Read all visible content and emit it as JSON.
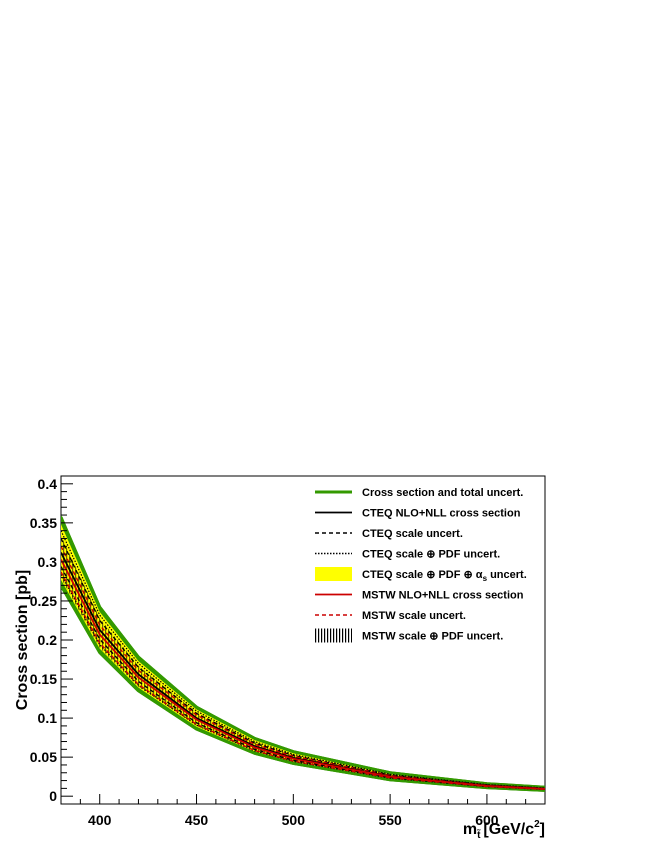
{
  "chart_data": {
    "type": "line",
    "ylabel": "Cross section [pb]",
    "xlabel": {
      "main": "m",
      "sub": "t̃",
      "unit_pre": "[GeV/c",
      "unit_sup": "2",
      "unit_post": "]"
    },
    "xlim": [
      380,
      630
    ],
    "ylim": [
      -0.01,
      0.41
    ],
    "x_ticks": [
      400,
      450,
      500,
      550,
      600
    ],
    "y_ticks": [
      0,
      0.05,
      0.1,
      0.15,
      0.2,
      0.25,
      0.3,
      0.35,
      0.4
    ],
    "y_tick_labels": [
      "0",
      "0.05",
      "0.1",
      "0.15",
      "0.2",
      "0.25",
      "0.3",
      "0.35",
      "0.4"
    ],
    "x": [
      380,
      400,
      420,
      450,
      480,
      500,
      550,
      600,
      630
    ],
    "series": [
      {
        "name": "Cross section and total uncert.",
        "role": "total_band",
        "color": "#339900",
        "upper": [
          0.357,
          0.242,
          0.178,
          0.114,
          0.074,
          0.057,
          0.03,
          0.016,
          0.0115
        ],
        "lower": [
          0.27,
          0.184,
          0.135,
          0.086,
          0.055,
          0.042,
          0.021,
          0.011,
          0.0075
        ]
      },
      {
        "name": "CTEQ NLO+NLL cross section",
        "role": "central",
        "color": "#000000",
        "values": [
          0.312,
          0.213,
          0.156,
          0.1,
          0.064,
          0.049,
          0.0255,
          0.0135,
          0.0095
        ]
      },
      {
        "name": "CTEQ scale uncert.",
        "role": "scale",
        "color": "#000000",
        "upper": [
          0.33,
          0.225,
          0.165,
          0.106,
          0.068,
          0.052,
          0.027,
          0.0143,
          0.0101
        ],
        "lower": [
          0.294,
          0.201,
          0.147,
          0.094,
          0.06,
          0.046,
          0.024,
          0.0127,
          0.0089
        ]
      },
      {
        "name": "CTEQ scale ⊕ PDF uncert.",
        "role": "scale_pdf",
        "color": "#000000",
        "upper": [
          0.34,
          0.232,
          0.17,
          0.109,
          0.07,
          0.0535,
          0.028,
          0.0148,
          0.0105
        ],
        "lower": [
          0.284,
          0.194,
          0.142,
          0.091,
          0.058,
          0.0445,
          0.023,
          0.0122,
          0.0085
        ]
      },
      {
        "name": "CTEQ scale ⊕ PDF ⊕ αs uncert.",
        "role": "scale_pdf_as_band",
        "color": "#ffff00",
        "upper": [
          0.348,
          0.236,
          0.173,
          0.111,
          0.072,
          0.055,
          0.0288,
          0.0152,
          0.0109
        ],
        "lower": [
          0.277,
          0.189,
          0.139,
          0.089,
          0.057,
          0.0435,
          0.0222,
          0.0118,
          0.0081
        ]
      },
      {
        "name": "MSTW NLO+NLL cross section",
        "role": "central",
        "color": "#cc0000",
        "values": [
          0.303,
          0.207,
          0.152,
          0.098,
          0.0625,
          0.048,
          0.025,
          0.0132,
          0.0093
        ]
      },
      {
        "name": "MSTW scale uncert.",
        "role": "scale",
        "color": "#cc0000",
        "upper": [
          0.32,
          0.219,
          0.161,
          0.104,
          0.0665,
          0.051,
          0.0265,
          0.014,
          0.0099
        ],
        "lower": [
          0.287,
          0.196,
          0.143,
          0.092,
          0.0585,
          0.045,
          0.0235,
          0.0124,
          0.0087
        ]
      },
      {
        "name": "MSTW scale ⊕ PDF uncert.",
        "role": "mstw_band",
        "color": "#000000",
        "upper": [
          0.334,
          0.228,
          0.167,
          0.107,
          0.069,
          0.0528,
          0.0276,
          0.0146,
          0.0103
        ],
        "lower": [
          0.279,
          0.19,
          0.14,
          0.09,
          0.0575,
          0.044,
          0.0228,
          0.012,
          0.0084
        ]
      }
    ],
    "legend_position": "top-right",
    "grid": false
  }
}
